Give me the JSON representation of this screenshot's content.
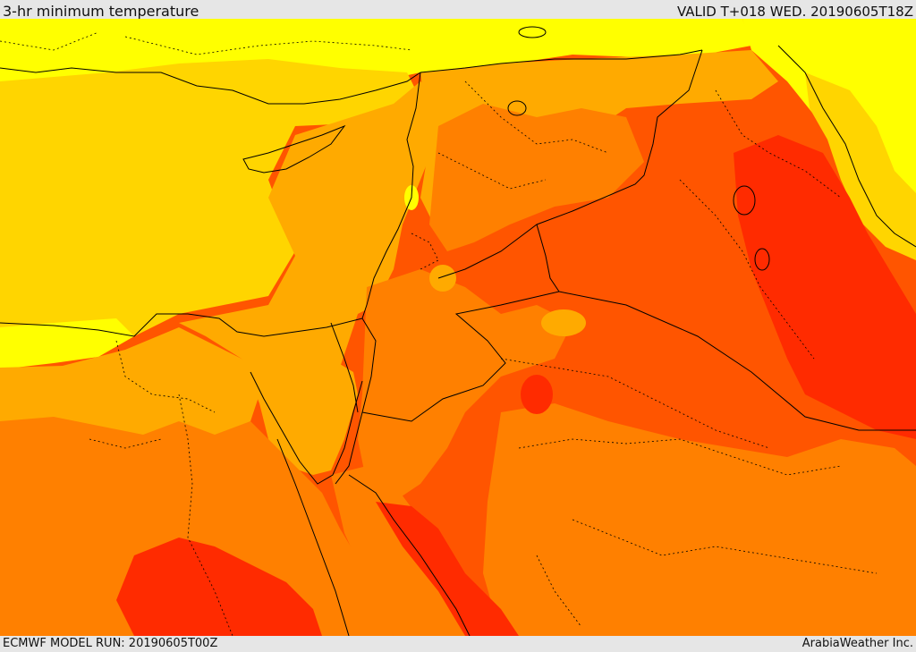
{
  "header": {
    "title": "3-hr minimum temperature",
    "valid": "VALID T+018 WED. 20190605T18Z"
  },
  "footer": {
    "model_run": "ECMWF MODEL RUN: 20190605T00Z",
    "credit": "ArabiaWeather Inc."
  },
  "palette": {
    "yellow_green": "#c8f000",
    "yellow": "#ffff00",
    "gold": "#ffd500",
    "amber": "#ffaa00",
    "orange": "#ff8000",
    "red_orange": "#ff5500",
    "red": "#ff2b00",
    "border": "#000000"
  }
}
